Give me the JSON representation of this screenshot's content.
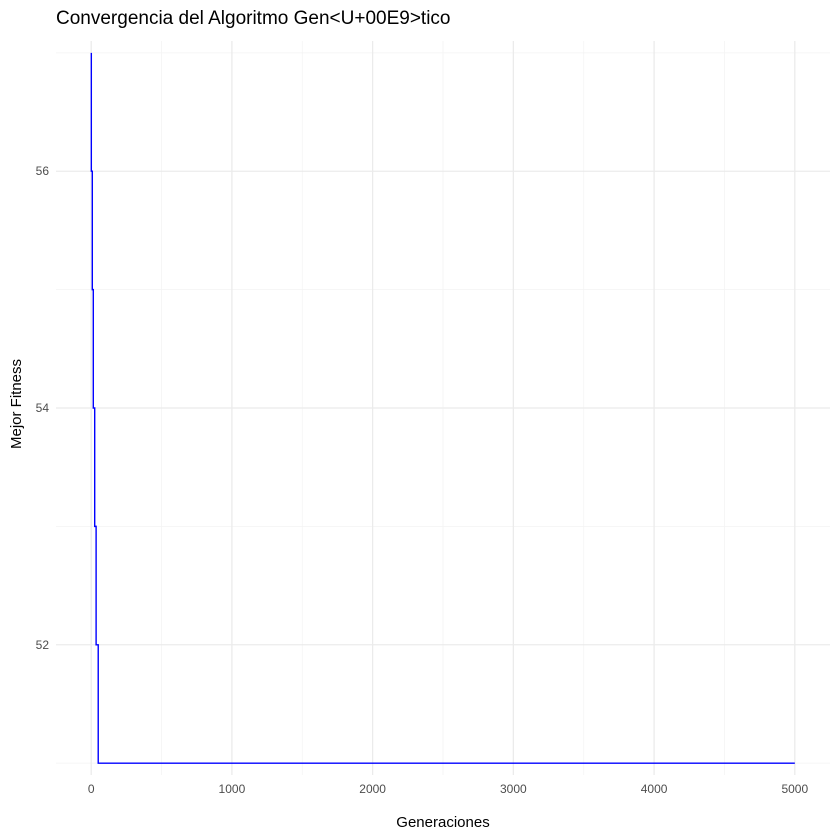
{
  "chart_data": {
    "type": "line",
    "title": "Convergencia del Algoritmo Gen<U+00E9>tico",
    "xlabel": "Generaciones",
    "ylabel": "Mejor Fitness",
    "xlim": [
      -250,
      5250
    ],
    "ylim": [
      50.9,
      57.1
    ],
    "xticks": [
      0,
      1000,
      2000,
      3000,
      4000,
      5000
    ],
    "xtick_labels": [
      "0",
      "1000",
      "2000",
      "3000",
      "4000",
      "5000"
    ],
    "yticks": [
      52,
      54,
      56
    ],
    "ytick_labels": [
      "52",
      "54",
      "56"
    ],
    "grid": true,
    "legend": "none",
    "series": [
      {
        "color": "#0000ff",
        "step": true,
        "points": [
          [
            1,
            57
          ],
          [
            8,
            56
          ],
          [
            15,
            55
          ],
          [
            25,
            54
          ],
          [
            35,
            53
          ],
          [
            50,
            52
          ],
          [
            62,
            51
          ],
          [
            5000,
            51
          ]
        ]
      }
    ]
  }
}
